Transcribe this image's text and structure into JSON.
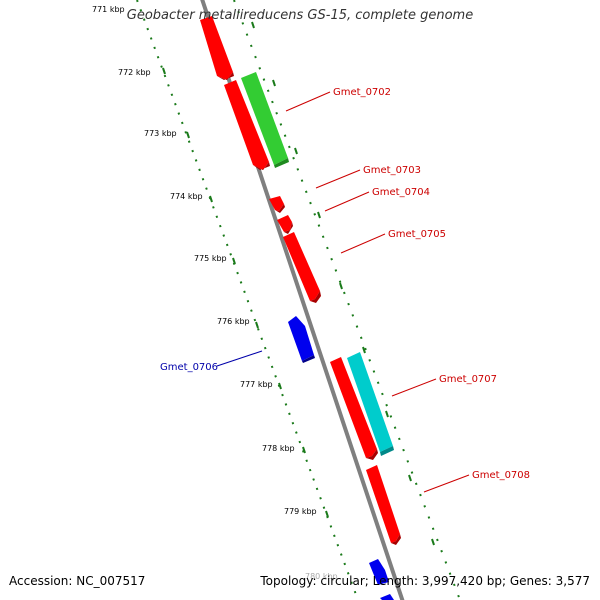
{
  "title": "Geobacter metallireducens GS-15, complete genome",
  "footer": {
    "accession": "Accession: NC_007517",
    "topology": "Topology: circular; Length: 3,997,420 bp; Genes: 3,577"
  },
  "colors": {
    "backbone": "#808080",
    "gene_red": "#ff0000",
    "gene_green": "#33cc33",
    "gene_cyan": "#00cccc",
    "gene_blue": "#0000ee",
    "label_red": "#cc0000",
    "label_blue": "#0000aa",
    "tick_green": "#1a7a1a"
  },
  "ticks": [
    "771 kbp",
    "772 kbp",
    "773 kbp",
    "774 kbp",
    "775 kbp",
    "776 kbp",
    "777 kbp",
    "778 kbp",
    "779 kbp",
    "780 kbp"
  ],
  "labels": [
    {
      "name": "Gmet_0702",
      "color": "red"
    },
    {
      "name": "Gmet_0703",
      "color": "red"
    },
    {
      "name": "Gmet_0704",
      "color": "red"
    },
    {
      "name": "Gmet_0705",
      "color": "red"
    },
    {
      "name": "Gmet_0706",
      "color": "blue"
    },
    {
      "name": "Gmet_0707",
      "color": "red"
    },
    {
      "name": "Gmet_0708",
      "color": "red"
    }
  ]
}
